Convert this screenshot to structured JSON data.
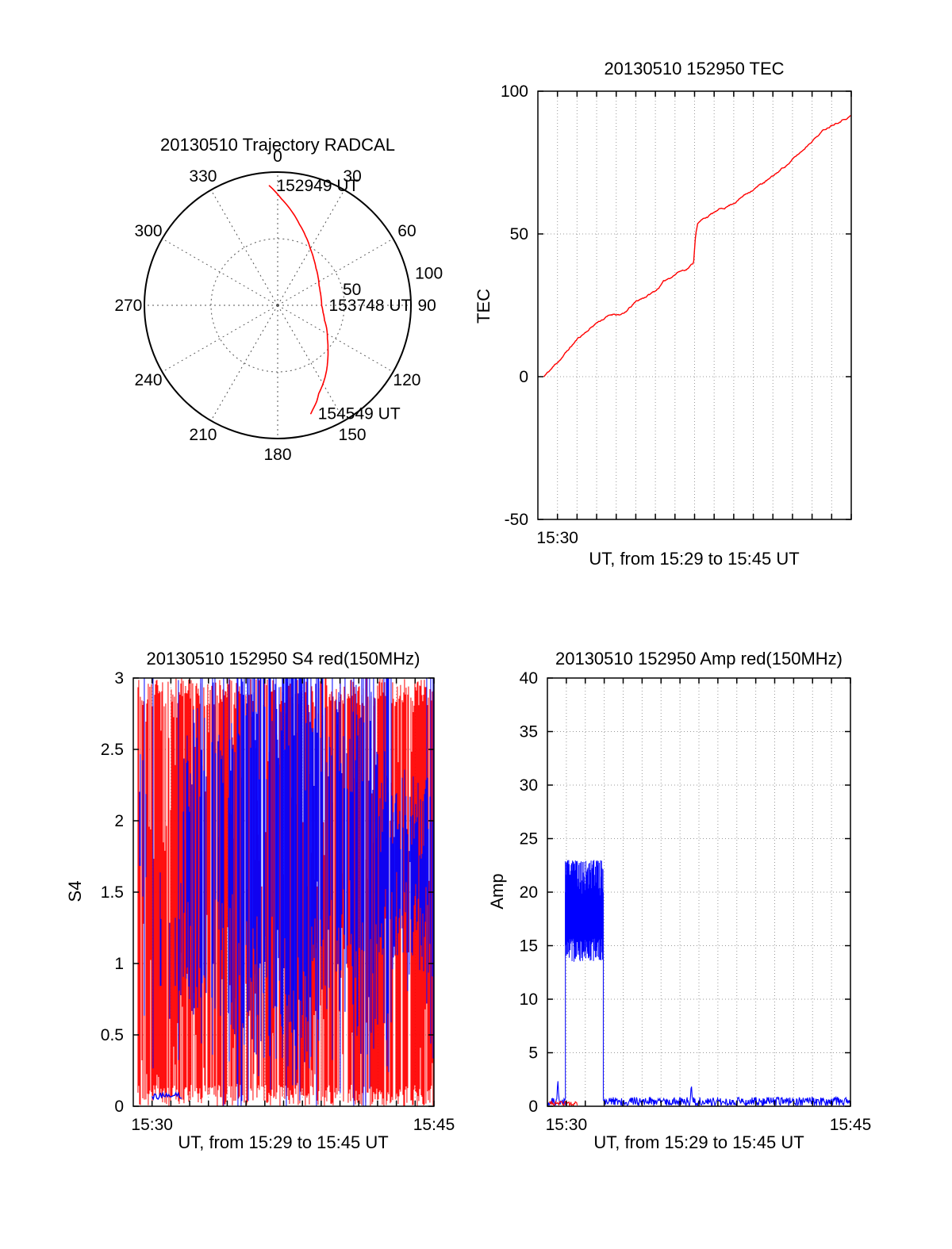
{
  "palette": {
    "line_red": "#ff0000",
    "line_blue": "#0000ff",
    "grid": "#999999",
    "axis": "#000000",
    "background": "#ffffff"
  },
  "chart_data": [
    {
      "type": "polar-trajectory",
      "title": "20130510 Trajectory RADCAL",
      "azimuth_tick_labels": [
        "0",
        "30",
        "60",
        "90",
        "120",
        "150",
        "180",
        "210",
        "240",
        "270",
        "300",
        "330"
      ],
      "radial_tick_labels": [
        "50",
        "100"
      ],
      "radial_max": 100,
      "line_color": "#ff0000",
      "annotations": [
        {
          "label": "152949 UT",
          "azimuth_deg": 356,
          "radius": 90
        },
        {
          "label": "153748 UT",
          "azimuth_deg": 90,
          "radius": 33
        },
        {
          "label": "154549 UT",
          "azimuth_deg": 163,
          "radius": 85
        }
      ],
      "trajectory_az_radius": [
        [
          356,
          90
        ],
        [
          2,
          80
        ],
        [
          8,
          72
        ],
        [
          15,
          63
        ],
        [
          22,
          56
        ],
        [
          30,
          49
        ],
        [
          38,
          44
        ],
        [
          46,
          40
        ],
        [
          55,
          37
        ],
        [
          64,
          34.5
        ],
        [
          72,
          33.5
        ],
        [
          81,
          33
        ],
        [
          90,
          33
        ],
        [
          99,
          34.5
        ],
        [
          108,
          37
        ],
        [
          116,
          41
        ],
        [
          124,
          45
        ],
        [
          131,
          50
        ],
        [
          138,
          56
        ],
        [
          144,
          62
        ],
        [
          150,
          68
        ],
        [
          155,
          73
        ],
        [
          158,
          78
        ],
        [
          161,
          82
        ],
        [
          163,
          85
        ]
      ]
    },
    {
      "type": "line",
      "title": "20130510 152950 TEC",
      "ylabel": "TEC",
      "xlabel": "UT, from 15:29 to 15:45 UT",
      "x_start": "15:29",
      "x_end": "15:45",
      "xlim_minutes": [
        0,
        16
      ],
      "ylim": [
        -50,
        100
      ],
      "yticks": [
        100,
        50,
        0,
        -50
      ],
      "xticks": [
        {
          "minute": 1,
          "label": "15:30"
        }
      ],
      "line_color": "#ff0000",
      "points_minute_tec": [
        [
          0.3,
          0
        ],
        [
          0.6,
          2
        ],
        [
          1,
          5
        ],
        [
          1.5,
          9
        ],
        [
          2,
          13
        ],
        [
          2.5,
          16
        ],
        [
          3,
          19
        ],
        [
          3.5,
          21
        ],
        [
          3.9,
          22
        ],
        [
          4.4,
          22
        ],
        [
          5,
          26
        ],
        [
          5.5,
          28
        ],
        [
          6,
          30
        ],
        [
          6.4,
          33
        ],
        [
          6.8,
          35
        ],
        [
          7.2,
          37
        ],
        [
          7.6,
          38
        ],
        [
          7.95,
          40
        ],
        [
          8.05,
          50
        ],
        [
          8.15,
          54
        ],
        [
          8.6,
          56
        ],
        [
          9,
          57.5
        ],
        [
          9.5,
          59
        ],
        [
          10,
          61
        ],
        [
          10.5,
          63.5
        ],
        [
          11,
          66
        ],
        [
          11.5,
          68
        ],
        [
          12,
          70
        ],
        [
          12.5,
          73
        ],
        [
          13,
          76
        ],
        [
          13.5,
          79
        ],
        [
          14,
          83
        ],
        [
          14.5,
          86
        ],
        [
          15,
          88.5
        ],
        [
          15.5,
          90.5
        ],
        [
          16,
          92
        ]
      ]
    },
    {
      "type": "scintillation-noise",
      "title": "20130510 152950 S4 red(150MHz)",
      "ylabel": "S4",
      "xlabel": "UT, from 15:29 to 15:45 UT",
      "xlim_minutes": [
        0,
        16
      ],
      "ylim": [
        0,
        3
      ],
      "yticks": [
        3,
        2.5,
        2,
        1.5,
        1,
        0.5,
        0
      ],
      "xticks": [
        {
          "minute": 1,
          "label": "15:30"
        },
        {
          "minute": 16,
          "label": "15:45"
        }
      ],
      "red_color": "#ff0000",
      "blue_color": "#0000ff",
      "red_noise": {
        "density": 0.9,
        "start_minute": 0.25
      },
      "blue_bins": [
        {
          "t0": 0.0,
          "t1": 0.9,
          "density": 0.25,
          "center": 1.8,
          "spread": 0.5
        },
        {
          "t0": 0.9,
          "t1": 2.6,
          "density": 0.15,
          "center": 1.2,
          "spread": 0.4
        },
        {
          "t0": 2.6,
          "t1": 5.5,
          "density": 0.55,
          "center": 1.7,
          "spread": 1.2
        },
        {
          "t0": 5.5,
          "t1": 9.5,
          "density": 0.85,
          "center": 1.8,
          "spread": 1.6
        },
        {
          "t0": 9.5,
          "t1": 13.0,
          "density": 0.8,
          "center": 1.8,
          "spread": 1.2
        },
        {
          "t0": 13.0,
          "t1": 16.0,
          "density": 0.95,
          "center": 1.65,
          "spread": 0.55
        }
      ],
      "blue_low_trace": {
        "t0": 1.0,
        "t1": 2.6,
        "value": 0.07
      }
    },
    {
      "type": "line-noise",
      "title": "20130510 152950 Amp red(150MHz)",
      "ylabel": "Amp",
      "xlabel": "UT, from 15:29 to 15:45 UT",
      "xlim_minutes": [
        0,
        16
      ],
      "ylim": [
        0,
        40
      ],
      "yticks": [
        40,
        35,
        30,
        25,
        20,
        15,
        10,
        5,
        0
      ],
      "xticks": [
        {
          "minute": 1,
          "label": "15:30"
        },
        {
          "minute": 16,
          "label": "15:45"
        }
      ],
      "blue_color": "#0000ff",
      "red_color": "#ff0000",
      "blue_burst": {
        "t0": 0.95,
        "t1": 2.95,
        "min": 13.5,
        "max": 23
      },
      "blue_baseline": [
        {
          "t0": 0.0,
          "t1": 0.95,
          "base": 0.4,
          "noise": 0.35
        },
        {
          "t0": 2.95,
          "t1": 16.0,
          "base": 0.45,
          "noise": 0.4
        }
      ],
      "blue_spikes": [
        {
          "t": 0.55,
          "v": 2.6
        },
        {
          "t": 7.6,
          "v": 2.2
        }
      ],
      "red_segment": {
        "t0": 0.1,
        "t1": 1.6,
        "base": 0.25,
        "noise": 0.2
      }
    }
  ]
}
